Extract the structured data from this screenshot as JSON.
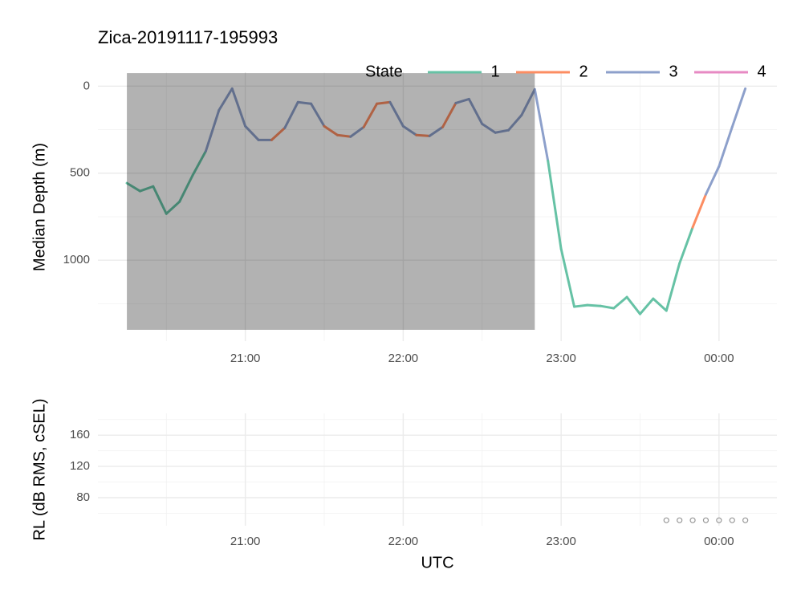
{
  "chart_data": [
    {
      "type": "line",
      "title": "Zica-20191117-195993",
      "y_label": "Median Depth (m)",
      "legend_title": "State",
      "legend_position": "top",
      "x": [
        "20:15",
        "20:20",
        "20:25",
        "20:30",
        "20:35",
        "20:40",
        "20:45",
        "20:50",
        "20:55",
        "21:00",
        "21:05",
        "21:10",
        "21:15",
        "21:20",
        "21:25",
        "21:30",
        "21:35",
        "21:40",
        "21:45",
        "21:50",
        "21:55",
        "22:00",
        "22:05",
        "22:10",
        "22:15",
        "22:20",
        "22:25",
        "22:30",
        "22:35",
        "22:40",
        "22:45",
        "22:50",
        "22:55",
        "23:00",
        "23:05",
        "23:10",
        "23:15",
        "23:20",
        "23:25",
        "23:30",
        "23:35",
        "23:40",
        "23:45",
        "23:50",
        "23:55",
        "00:00",
        "00:05",
        "00:10"
      ],
      "values": [
        557,
        603,
        576,
        733,
        664,
        512,
        373,
        138,
        14,
        230,
        309,
        309,
        240,
        92,
        101,
        230,
        281,
        290,
        235,
        101,
        92,
        230,
        281,
        286,
        235,
        97,
        74,
        217,
        267,
        253,
        166,
        18,
        429,
        935,
        1267,
        1258,
        1263,
        1276,
        1212,
        1309,
        1221,
        1290,
        1018,
        811,
        622,
        461,
        235,
        14
      ],
      "states": [
        1,
        1,
        1,
        1,
        1,
        1,
        3,
        3,
        3,
        3,
        3,
        2,
        3,
        3,
        3,
        2,
        2,
        3,
        2,
        2,
        3,
        3,
        2,
        3,
        2,
        3,
        3,
        3,
        3,
        3,
        3,
        3,
        1,
        1,
        1,
        1,
        1,
        1,
        1,
        1,
        1,
        1,
        1,
        2,
        3,
        3,
        3,
        3
      ],
      "series": [
        {
          "name": "1",
          "color": "#66c2a5"
        },
        {
          "name": "2",
          "color": "#fc8d62"
        },
        {
          "name": "3",
          "color": "#8da0cb"
        },
        {
          "name": "4",
          "color": "#e78ac3"
        }
      ],
      "shaded_region": {
        "x": [
          "20:15",
          "22:50"
        ],
        "y": [
          -75,
          1400
        ]
      },
      "xlim": [
        "20:04",
        "00:22"
      ],
      "xticks": [
        "21:00",
        "22:00",
        "23:00",
        "00:00"
      ],
      "x_minor_ticks": [
        "20:30",
        "21:30",
        "22:30",
        "23:30"
      ],
      "ylim": [
        -80,
        1465
      ],
      "y_reversed": true,
      "yticks": [
        0,
        500,
        1000
      ],
      "y_minor_ticks": [
        250,
        750,
        1250
      ],
      "grid": true
    },
    {
      "type": "scatter",
      "x_label": "UTC",
      "y_label": "RL (dB RMS, cSEL)",
      "x": [
        "23:40",
        "23:45",
        "23:50",
        "23:55",
        "00:00",
        "00:05",
        "00:10"
      ],
      "values": [
        51,
        51,
        51,
        51,
        51,
        51,
        51
      ],
      "color": "#999999",
      "xlim": [
        "20:04",
        "00:22"
      ],
      "xticks": [
        "21:00",
        "22:00",
        "23:00",
        "00:00"
      ],
      "x_minor_ticks": [
        "20:30",
        "21:30",
        "22:30",
        "23:30"
      ],
      "ylim": [
        44,
        188
      ],
      "yticks": [
        80,
        120,
        160
      ],
      "y_minor_ticks": [
        60,
        100,
        140,
        180
      ],
      "grid": true
    }
  ]
}
